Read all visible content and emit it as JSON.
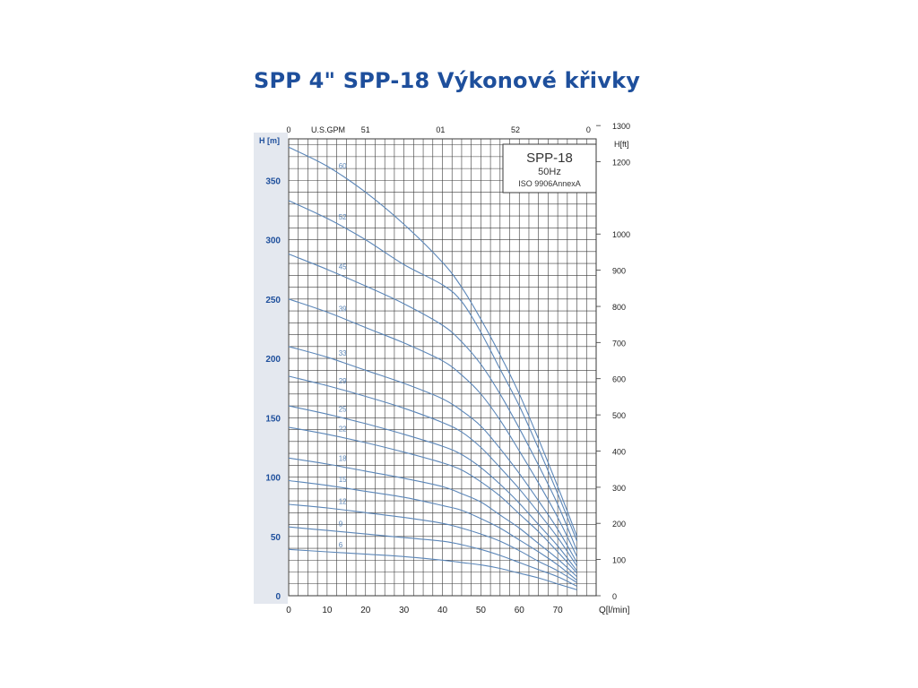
{
  "title": "SPP 4\" SPP-18 Výkonové křivky",
  "colors": {
    "title": "#1e4f9c",
    "curve": "#5b86b8",
    "grid": "#3a3a3a",
    "left_band": "#e4e8ef",
    "left_axis": "#1e4f9c"
  },
  "chart_data": {
    "type": "line",
    "title": "SPP 4\" SPP-18 Výkonové křivky",
    "legend_box": {
      "line1": "SPP-18",
      "line2": "50Hz",
      "line3": "ISO 9906AnnexA"
    },
    "x_axis": {
      "label": "Q[l/min]",
      "range": [
        0,
        80
      ],
      "ticks": [
        "0",
        "10",
        "20",
        "30",
        "40",
        "50",
        "60",
        "70"
      ],
      "tick_values": [
        0,
        10,
        20,
        30,
        40,
        50,
        60,
        70
      ]
    },
    "x_top_axis": {
      "label": "U.S.GPM",
      "ticks": [
        "0",
        "51",
        "01",
        "52",
        "0"
      ],
      "tick_values": [
        0,
        20,
        39.5,
        59,
        78
      ]
    },
    "y_left_axis": {
      "label": "H [m]",
      "range": [
        0,
        385
      ],
      "ticks": [
        "0",
        "50",
        "100",
        "150",
        "200",
        "250",
        "300",
        "350"
      ],
      "tick_values": [
        0,
        50,
        100,
        150,
        200,
        250,
        300,
        350
      ]
    },
    "y_right_axis": {
      "label": "H[ft]",
      "ticks": [
        "0",
        "100",
        "200",
        "300",
        "400",
        "500",
        "600",
        "700",
        "800",
        "900",
        "1000",
        "1200",
        "1300"
      ],
      "tick_values": [
        0,
        100,
        200,
        300,
        400,
        500,
        600,
        700,
        800,
        900,
        1000,
        1200,
        1300
      ],
      "tick_heights_m": [
        0,
        30.5,
        61,
        91.4,
        121.9,
        152.4,
        182.9,
        213.4,
        243.8,
        274.3,
        304.8,
        365.8,
        396.2
      ]
    },
    "grid": true,
    "series": [
      {
        "name": "60",
        "label_x": 13,
        "x": [
          0,
          10,
          20,
          30,
          40,
          45,
          50,
          55,
          60,
          65,
          70,
          75
        ],
        "y": [
          378,
          362,
          340,
          313,
          281,
          260,
          233,
          203,
          170,
          132,
          92,
          50
        ]
      },
      {
        "name": "52",
        "label_x": 13,
        "x": [
          0,
          10,
          20,
          30,
          40,
          45,
          50,
          55,
          60,
          65,
          70,
          75
        ],
        "y": [
          333,
          318,
          300,
          279,
          262,
          248,
          222,
          191,
          160,
          124,
          86,
          46
        ]
      },
      {
        "name": "45",
        "label_x": 13,
        "x": [
          0,
          10,
          20,
          30,
          40,
          45,
          50,
          55,
          60,
          65,
          70,
          75
        ],
        "y": [
          288,
          275,
          261,
          246,
          228,
          214,
          195,
          170,
          141,
          110,
          77,
          38
        ]
      },
      {
        "name": "39",
        "label_x": 13,
        "x": [
          0,
          10,
          20,
          30,
          40,
          45,
          50,
          55,
          60,
          65,
          70,
          75
        ],
        "y": [
          250,
          239,
          226,
          213,
          198,
          186,
          170,
          148,
          122,
          95,
          66,
          33
        ]
      },
      {
        "name": "33",
        "label_x": 13,
        "x": [
          0,
          10,
          20,
          30,
          40,
          45,
          50,
          55,
          60,
          65,
          70,
          75
        ],
        "y": [
          210,
          201,
          190,
          179,
          166,
          156,
          143,
          124,
          103,
          80,
          56,
          28
        ]
      },
      {
        "name": "29",
        "label_x": 13,
        "x": [
          0,
          10,
          20,
          30,
          40,
          45,
          50,
          55,
          60,
          65,
          70,
          75
        ],
        "y": [
          185,
          177,
          168,
          158,
          146,
          138,
          125,
          108,
          90,
          70,
          49,
          25
        ]
      },
      {
        "name": "25",
        "label_x": 13,
        "x": [
          0,
          10,
          20,
          30,
          40,
          45,
          50,
          55,
          60,
          65,
          70,
          75
        ],
        "y": [
          160,
          153,
          145,
          136,
          126,
          119,
          108,
          94,
          78,
          60,
          42,
          21
        ]
      },
      {
        "name": "22",
        "label_x": 13,
        "x": [
          0,
          10,
          20,
          30,
          40,
          45,
          50,
          55,
          60,
          65,
          70,
          75
        ],
        "y": [
          142,
          136,
          129,
          121,
          112,
          106,
          96,
          84,
          69,
          54,
          37,
          19
        ]
      },
      {
        "name": "18",
        "label_x": 13,
        "x": [
          0,
          10,
          20,
          30,
          40,
          45,
          50,
          55,
          60,
          65,
          70,
          75
        ],
        "y": [
          116,
          111,
          105,
          99,
          92,
          86,
          79,
          68,
          57,
          44,
          31,
          16
        ]
      },
      {
        "name": "15",
        "label_x": 13,
        "x": [
          0,
          10,
          20,
          30,
          40,
          45,
          50,
          55,
          60,
          65,
          70,
          75
        ],
        "y": [
          97,
          93,
          88,
          83,
          76,
          72,
          65,
          57,
          47,
          37,
          26,
          13
        ]
      },
      {
        "name": "12",
        "label_x": 13,
        "x": [
          0,
          10,
          20,
          30,
          40,
          45,
          50,
          55,
          60,
          65,
          70,
          75
        ],
        "y": [
          77,
          74,
          70,
          66,
          61,
          57,
          52,
          46,
          38,
          29,
          21,
          11
        ]
      },
      {
        "name": "9",
        "label_x": 13,
        "x": [
          0,
          10,
          20,
          30,
          40,
          45,
          50,
          55,
          60,
          65,
          70,
          75
        ],
        "y": [
          58,
          55,
          52,
          49,
          46,
          43,
          39,
          34,
          28,
          22,
          16,
          8
        ]
      },
      {
        "name": "6",
        "label_x": 13,
        "x": [
          0,
          10,
          20,
          30,
          40,
          45,
          50,
          55,
          60,
          65,
          70,
          75
        ],
        "y": [
          39,
          37,
          35,
          33,
          30,
          28,
          26,
          23,
          19,
          15,
          10,
          5
        ]
      }
    ]
  }
}
